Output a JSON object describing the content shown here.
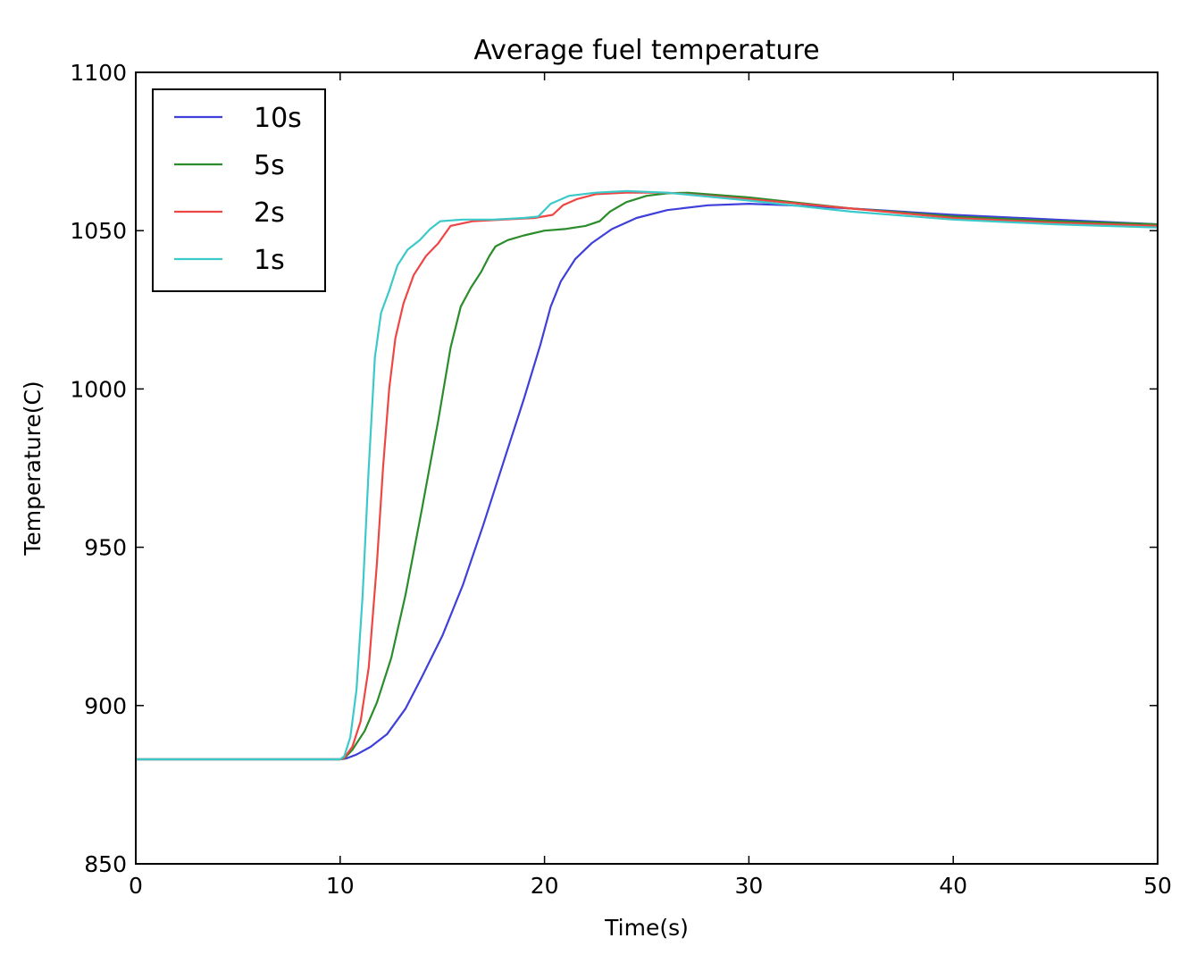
{
  "chart_data": {
    "type": "line",
    "title": "Average fuel temperature",
    "xlabel": "Time(s)",
    "ylabel": "Temperature(C)",
    "xlim": [
      0,
      50
    ],
    "ylim": [
      850,
      1100
    ],
    "xticks": [
      0,
      10,
      20,
      30,
      40,
      50
    ],
    "yticks": [
      850,
      900,
      950,
      1000,
      1050,
      1100
    ],
    "grid": false,
    "legend_position": "top-left",
    "series": [
      {
        "name": "10s",
        "color": "#3f3fd9",
        "points": [
          [
            0,
            883
          ],
          [
            10,
            883
          ],
          [
            10.3,
            883.3
          ],
          [
            10.8,
            884.5
          ],
          [
            11.5,
            887
          ],
          [
            12.3,
            891
          ],
          [
            13.2,
            899
          ],
          [
            14,
            909
          ],
          [
            15,
            922
          ],
          [
            16,
            938
          ],
          [
            17,
            957
          ],
          [
            18,
            977
          ],
          [
            19,
            997
          ],
          [
            19.8,
            1014
          ],
          [
            20.3,
            1026
          ],
          [
            20.8,
            1034
          ],
          [
            21.5,
            1041
          ],
          [
            22.3,
            1046
          ],
          [
            23.3,
            1050.5
          ],
          [
            24.5,
            1054
          ],
          [
            26,
            1056.5
          ],
          [
            28,
            1058
          ],
          [
            30,
            1058.5
          ],
          [
            32,
            1058
          ],
          [
            35,
            1057
          ],
          [
            40,
            1055
          ],
          [
            45,
            1053.5
          ],
          [
            50,
            1052
          ]
        ]
      },
      {
        "name": "5s",
        "color": "#2a8c2a",
        "points": [
          [
            0,
            883
          ],
          [
            10,
            883
          ],
          [
            10.2,
            883.3
          ],
          [
            10.6,
            886
          ],
          [
            11.2,
            892
          ],
          [
            11.8,
            901
          ],
          [
            12.5,
            915
          ],
          [
            13.2,
            935
          ],
          [
            14,
            962
          ],
          [
            14.8,
            990
          ],
          [
            15.4,
            1013
          ],
          [
            15.9,
            1026
          ],
          [
            16.4,
            1032
          ],
          [
            16.9,
            1037
          ],
          [
            17.3,
            1042
          ],
          [
            17.6,
            1045
          ],
          [
            18.2,
            1047
          ],
          [
            19,
            1048.5
          ],
          [
            20,
            1050
          ],
          [
            21,
            1050.5
          ],
          [
            22,
            1051.5
          ],
          [
            22.7,
            1053
          ],
          [
            23.2,
            1056
          ],
          [
            24,
            1059
          ],
          [
            25,
            1061
          ],
          [
            26,
            1061.8
          ],
          [
            27,
            1062
          ],
          [
            30,
            1060.5
          ],
          [
            35,
            1057
          ],
          [
            40,
            1054.5
          ],
          [
            45,
            1053
          ],
          [
            50,
            1052
          ]
        ]
      },
      {
        "name": "2s",
        "color": "#f04545",
        "points": [
          [
            0,
            883
          ],
          [
            10,
            883
          ],
          [
            10.2,
            883.5
          ],
          [
            10.6,
            887
          ],
          [
            11,
            895
          ],
          [
            11.4,
            912
          ],
          [
            11.8,
            945
          ],
          [
            12.1,
            975
          ],
          [
            12.4,
            1000
          ],
          [
            12.7,
            1016
          ],
          [
            13.1,
            1027
          ],
          [
            13.6,
            1036
          ],
          [
            14.2,
            1042
          ],
          [
            14.8,
            1046
          ],
          [
            15.4,
            1051.5
          ],
          [
            16.5,
            1053
          ],
          [
            18,
            1053.5
          ],
          [
            19.5,
            1054
          ],
          [
            20.4,
            1055
          ],
          [
            20.9,
            1058
          ],
          [
            21.6,
            1060
          ],
          [
            22.5,
            1061.5
          ],
          [
            24,
            1062
          ],
          [
            26,
            1062
          ],
          [
            30,
            1060
          ],
          [
            35,
            1057
          ],
          [
            40,
            1054
          ],
          [
            45,
            1052.5
          ],
          [
            50,
            1051.5
          ]
        ]
      },
      {
        "name": "1s",
        "color": "#3cc9c9",
        "points": [
          [
            0,
            883
          ],
          [
            10,
            883
          ],
          [
            10.2,
            884
          ],
          [
            10.5,
            890
          ],
          [
            10.8,
            905
          ],
          [
            11.1,
            935
          ],
          [
            11.4,
            975
          ],
          [
            11.7,
            1010
          ],
          [
            12,
            1024
          ],
          [
            12.4,
            1031
          ],
          [
            12.8,
            1039
          ],
          [
            13.3,
            1044
          ],
          [
            13.9,
            1047
          ],
          [
            14.4,
            1050.5
          ],
          [
            14.9,
            1053
          ],
          [
            16,
            1053.5
          ],
          [
            17.5,
            1053.5
          ],
          [
            19,
            1054
          ],
          [
            19.7,
            1054.5
          ],
          [
            20.3,
            1058.5
          ],
          [
            21.2,
            1061
          ],
          [
            22.5,
            1062
          ],
          [
            24,
            1062.5
          ],
          [
            26,
            1062
          ],
          [
            30,
            1059.5
          ],
          [
            35,
            1056
          ],
          [
            40,
            1053.5
          ],
          [
            45,
            1052
          ],
          [
            50,
            1051
          ]
        ]
      }
    ]
  }
}
